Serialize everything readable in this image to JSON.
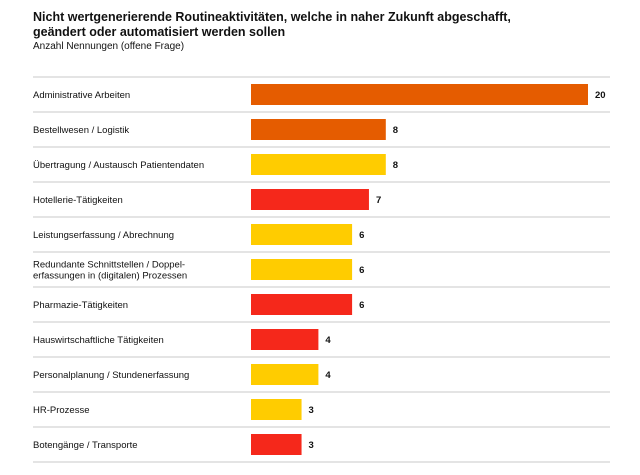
{
  "chart_data": {
    "type": "bar",
    "orientation": "horizontal",
    "title_lines": [
      "Nicht wertgenerierende Routineaktivitäten, welche in naher Zukunft abgeschafft,",
      "geändert oder automatisiert werden sollen"
    ],
    "subtitle": "Anzahl Nennungen (offene Frage)",
    "xlim": [
      0,
      20
    ],
    "grid": false,
    "categories": [
      [
        "Administrative Arbeiten"
      ],
      [
        "Bestellwesen / Logistik"
      ],
      [
        "Übertragung / Austausch Patientendaten"
      ],
      [
        "Hotellerie-Tätigkeiten"
      ],
      [
        "Leistungserfassung / Abrechnung"
      ],
      [
        "Redundante Schnittstellen / Doppel-",
        "erfassungen in (digitalen) Prozessen"
      ],
      [
        "Pharmazie-Tätigkeiten"
      ],
      [
        "Hauswirtschaftliche Tätigkeiten"
      ],
      [
        "Personalplanung / Stundenerfassung"
      ],
      [
        "HR-Prozesse"
      ],
      [
        "Botengänge / Transporte"
      ]
    ],
    "values": [
      20,
      8,
      8,
      7,
      6,
      6,
      6,
      4,
      4,
      3,
      3
    ],
    "bar_colors": [
      "#E55C00",
      "#E55C00",
      "#FFCC00",
      "#F5281B",
      "#FFCC00",
      "#FFCC00",
      "#F5281B",
      "#F5281B",
      "#FFCC00",
      "#FFCC00",
      "#F5281B"
    ],
    "row_divider_color": "#c8c8c8"
  }
}
